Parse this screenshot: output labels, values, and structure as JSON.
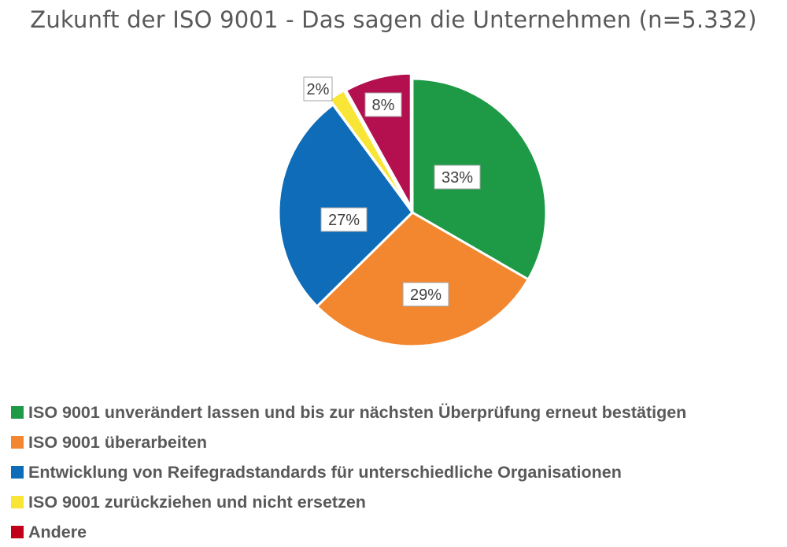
{
  "chart_data": {
    "type": "pie",
    "title": "Zukunft der ISO 9001 - Das sagen die Unternehmen (n=5.332)",
    "slices": [
      {
        "label": "ISO 9001 unverändert lassen und bis zur nächsten Überprüfung erneut bestätigen",
        "value": 33,
        "display": "33%",
        "color": "#1e9a46",
        "legend_color": "#1e9a46"
      },
      {
        "label": "ISO 9001 überarbeiten",
        "value": 29,
        "display": "29%",
        "color": "#f2872f",
        "legend_color": "#f2872f"
      },
      {
        "label": "Entwicklung von Reifegradstandards für unterschiedliche Organisationen",
        "value": 27,
        "display": "27%",
        "color": "#0e6cb8",
        "legend_color": "#0e6cb8"
      },
      {
        "label": "ISO 9001 zurückziehen und nicht ersetzen",
        "value": 2,
        "display": "2%",
        "color": "#f9e536",
        "legend_color": "#f9e536"
      },
      {
        "label": "Andere",
        "value": 8,
        "display": "8%",
        "color": "#b4104f",
        "legend_color": "#c00018"
      }
    ],
    "legend_position": "bottom-left",
    "start_angle_deg": 0,
    "direction": "clockwise"
  }
}
